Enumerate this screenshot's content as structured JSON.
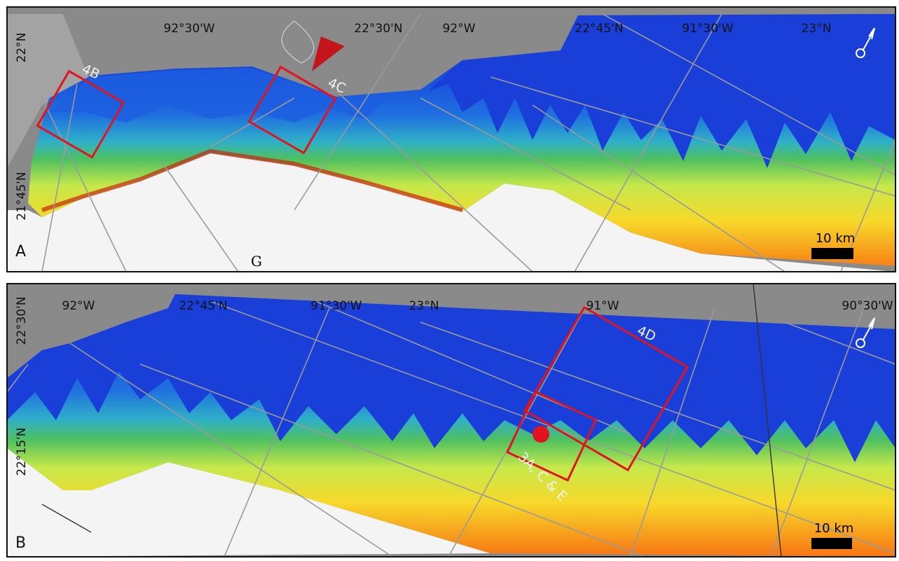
{
  "panels": [
    {
      "label": "A",
      "coordinate_labels": [
        "92°30'W",
        "22°30'N",
        "92°W",
        "22°45'N",
        "91°30'W",
        "23°N",
        "22°N",
        "21°45'N"
      ],
      "box_labels": [
        "4B",
        "4C"
      ],
      "place_label": "G",
      "scale_bar": "10 km"
    },
    {
      "label": "B",
      "coordinate_labels": [
        "92°W",
        "22°45'N",
        "91°30'W",
        "23°N",
        "91°W",
        "90°30'W",
        "22°30'N",
        "22°15'N"
      ],
      "box_labels": [
        "4D",
        "3A, C & E"
      ],
      "scale_bar": "10 km"
    }
  ]
}
